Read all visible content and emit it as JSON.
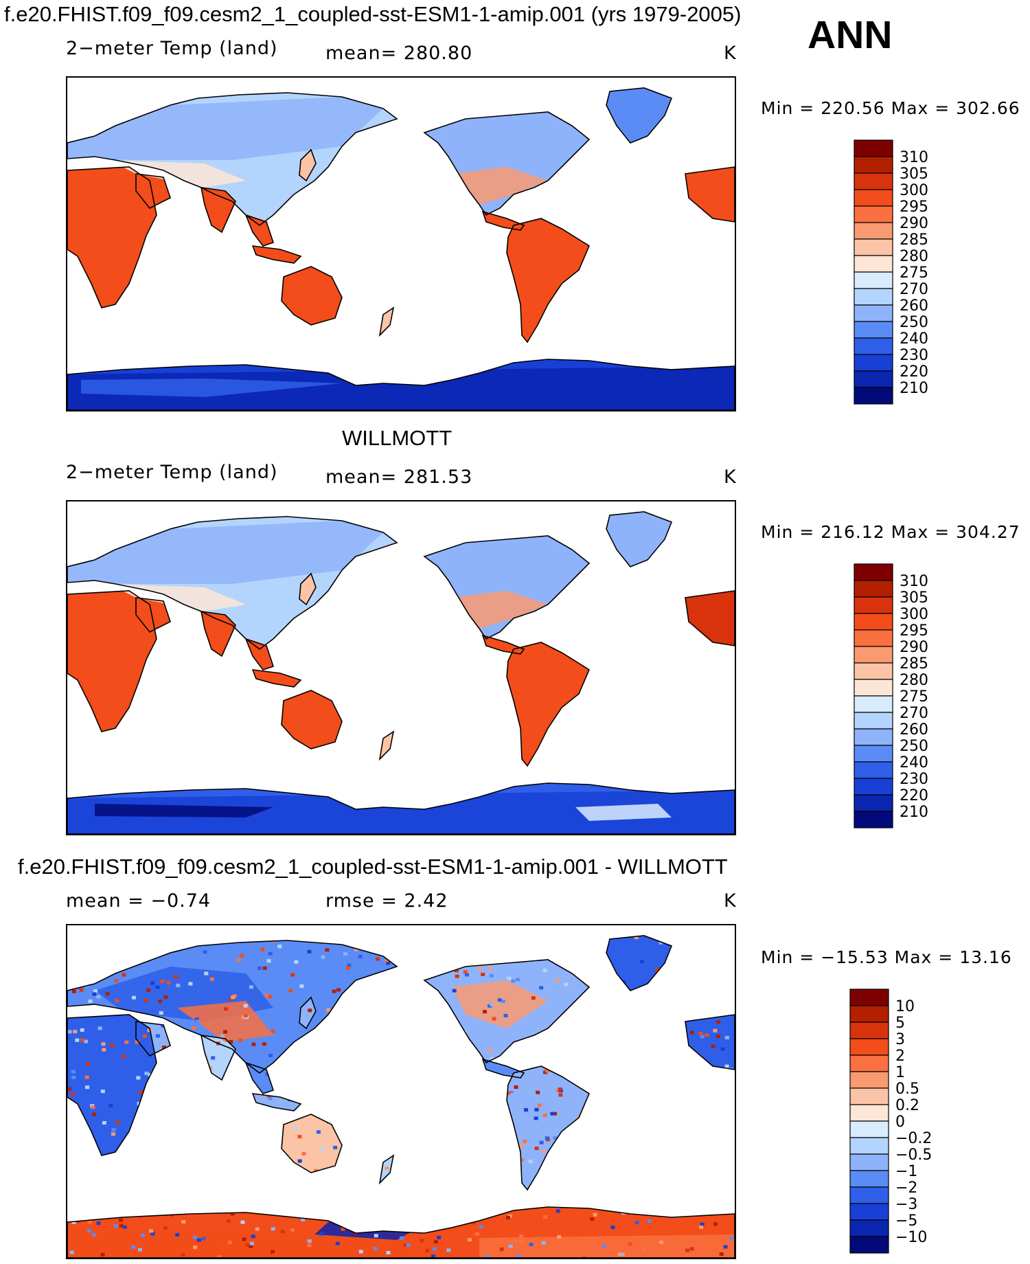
{
  "figure": {
    "title": "f.e20.FHIST.f09_f09.cesm2_1_coupled-sst-ESM1-1-amip.001 (yrs 1979-2005)",
    "season": "ANN"
  },
  "colors": {
    "abs_scale": [
      "#7f0000",
      "#b22000",
      "#d9330d",
      "#f24d1a",
      "#fa7040",
      "#fa9a70",
      "#fcc4a6",
      "#fde6d6",
      "#d9ecfe",
      "#b3d4fc",
      "#8fb3fa",
      "#5b8cf5",
      "#2f5fe8",
      "#1840d6",
      "#0a25b0",
      "#020a7a"
    ],
    "diff_scale": [
      "#7f0000",
      "#b22000",
      "#d9330d",
      "#f24d1a",
      "#fa7040",
      "#fa9a70",
      "#fcc4a6",
      "#fde6d6",
      "#d9ecfe",
      "#b3d4fc",
      "#8fb3fa",
      "#5b8cf5",
      "#2f5fe8",
      "#1840d6",
      "#0a25b0",
      "#020a7a"
    ],
    "land_outline": "#000000"
  },
  "panels": [
    {
      "header": "",
      "variable": "2−meter Temp (land)",
      "stat": "mean=  280.80",
      "units": "K",
      "minmax": "Min  =  220.56  Max  =  302.66",
      "colorbar_labels": [
        "310",
        "305",
        "300",
        "295",
        "290",
        "285",
        "280",
        "275",
        "270",
        "260",
        "250",
        "240",
        "230",
        "220",
        "210"
      ]
    },
    {
      "header": "WILLMOTT",
      "variable": "2−meter Temp (land)",
      "stat": "mean=  281.53",
      "units": "K",
      "minmax": "Min  =  216.12  Max  =  304.27",
      "colorbar_labels": [
        "310",
        "305",
        "300",
        "295",
        "290",
        "285",
        "280",
        "275",
        "270",
        "260",
        "250",
        "240",
        "230",
        "220",
        "210"
      ]
    },
    {
      "header": "f.e20.FHIST.f09_f09.cesm2_1_coupled-sst-ESM1-1-amip.001 - WILLMOTT",
      "variable": "mean  =    −0.74",
      "stat": "rmse  =     2.42",
      "units": "K",
      "minmax": "Min  =  −15.53  Max  =    13.16",
      "colorbar_labels": [
        "10",
        "5",
        "3",
        "2",
        "1",
        "0.5",
        "0.2",
        "0",
        "−0.2",
        "−0.5",
        "−1",
        "−2",
        "−3",
        "−5",
        "−10"
      ]
    }
  ],
  "chart_data": [
    {
      "type": "heatmap",
      "title": "2−meter Temp (land)",
      "units": "K",
      "mean": 280.8,
      "min": 220.56,
      "max": 302.66,
      "colorbar_levels": [
        210,
        220,
        230,
        240,
        250,
        260,
        270,
        275,
        280,
        285,
        290,
        295,
        300,
        305,
        310
      ],
      "map": "global land, centered on Pacific",
      "regions": [
        {
          "name": "Africa",
          "approx_value": 298
        },
        {
          "name": "Australia",
          "approx_value": 296
        },
        {
          "name": "South America",
          "approx_value": 297
        },
        {
          "name": "Eurasia north",
          "approx_value": 262
        },
        {
          "name": "North America north",
          "approx_value": 260
        },
        {
          "name": "Greenland",
          "approx_value": 245
        },
        {
          "name": "Antarctica",
          "approx_value": 225
        }
      ]
    },
    {
      "type": "heatmap",
      "title": "2−meter Temp (land)",
      "units": "K",
      "mean": 281.53,
      "min": 216.12,
      "max": 304.27,
      "colorbar_levels": [
        210,
        220,
        230,
        240,
        250,
        260,
        270,
        275,
        280,
        285,
        290,
        295,
        300,
        305,
        310
      ],
      "map": "global land, centered on Pacific",
      "regions": [
        {
          "name": "Africa",
          "approx_value": 299
        },
        {
          "name": "Australia",
          "approx_value": 296
        },
        {
          "name": "South America",
          "approx_value": 298
        },
        {
          "name": "Eurasia north",
          "approx_value": 263
        },
        {
          "name": "North America north",
          "approx_value": 261
        },
        {
          "name": "Greenland",
          "approx_value": 250
        },
        {
          "name": "Antarctica",
          "approx_value": 222
        }
      ]
    },
    {
      "type": "heatmap",
      "title": "f.e20.FHIST.f09_f09.cesm2_1_coupled-sst-ESM1-1-amip.001 - WILLMOTT",
      "units": "K",
      "mean": -0.74,
      "rmse": 2.42,
      "min": -15.53,
      "max": 13.16,
      "colorbar_levels": [
        -10,
        -5,
        -3,
        -2,
        -1,
        -0.5,
        -0.2,
        0,
        0.2,
        0.5,
        1,
        2,
        3,
        5,
        10
      ],
      "map": "global land, centered on Pacific",
      "regions": [
        {
          "name": "Africa",
          "approx_value": -1.5
        },
        {
          "name": "Australia",
          "approx_value": 0.5
        },
        {
          "name": "South America",
          "approx_value": -0.5
        },
        {
          "name": "Eurasia north",
          "approx_value": -0.5
        },
        {
          "name": "North America north",
          "approx_value": -0.5
        },
        {
          "name": "Greenland",
          "approx_value": -2
        },
        {
          "name": "Antarctica",
          "approx_value": 3
        }
      ]
    }
  ]
}
